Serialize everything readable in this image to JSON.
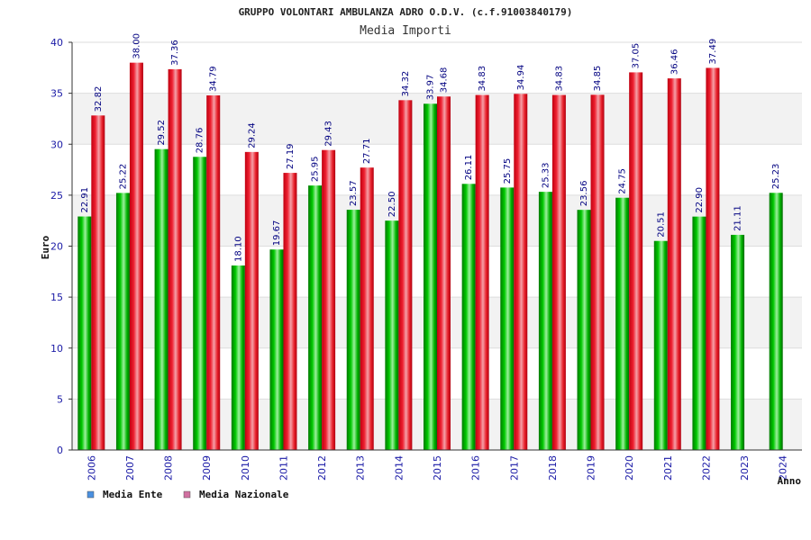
{
  "chart_data": {
    "type": "bar",
    "title": "GRUPPO VOLONTARI AMBULANZA ADRO O.D.V. (c.f.91003840179)",
    "subtitle": "Media Importi",
    "xlabel": "Anno",
    "ylabel": "Euro",
    "ylim": [
      0,
      40
    ],
    "yticks": [
      0,
      5,
      10,
      15,
      20,
      25,
      30,
      35,
      40
    ],
    "categories": [
      "2006",
      "2007",
      "2008",
      "2009",
      "2010",
      "2011",
      "2012",
      "2013",
      "2014",
      "2015",
      "2016",
      "2017",
      "2018",
      "2019",
      "2020",
      "2021",
      "2022",
      "2023",
      "2024"
    ],
    "series": [
      {
        "name": "Media Ente",
        "color": "#00b400",
        "legend_color": "#4a90e0",
        "values": [
          22.91,
          25.22,
          29.52,
          28.76,
          18.1,
          19.67,
          25.95,
          23.57,
          22.5,
          33.97,
          26.11,
          25.75,
          25.33,
          23.56,
          24.75,
          20.51,
          22.9,
          21.11,
          25.23
        ],
        "labels": [
          "22.91",
          "25.22",
          "29.52",
          "28.76",
          "18.10",
          "19.67",
          "25.95",
          "23.57",
          "22.50",
          "33.97",
          "26.11",
          "25.75",
          "25.33",
          "23.56",
          "24.75",
          "20.51",
          "22.90",
          "21.11",
          "25.23"
        ]
      },
      {
        "name": "Media Nazionale",
        "color": "#e8202a",
        "legend_color": "#d070a0",
        "values": [
          32.82,
          38.0,
          37.36,
          34.79,
          29.24,
          27.19,
          29.43,
          27.71,
          34.32,
          34.68,
          34.83,
          34.94,
          34.83,
          34.85,
          37.05,
          36.46,
          37.49,
          null,
          null
        ],
        "labels": [
          "32.82",
          "38.00",
          "37.36",
          "34.79",
          "29.24",
          "27.19",
          "29.43",
          "27.71",
          "34.32",
          "34.68",
          "34.83",
          "34.94",
          "34.83",
          "34.85",
          "37.05",
          "36.46",
          "37.49",
          null,
          null
        ]
      }
    ],
    "grid": true,
    "legend": "bottom-left"
  }
}
